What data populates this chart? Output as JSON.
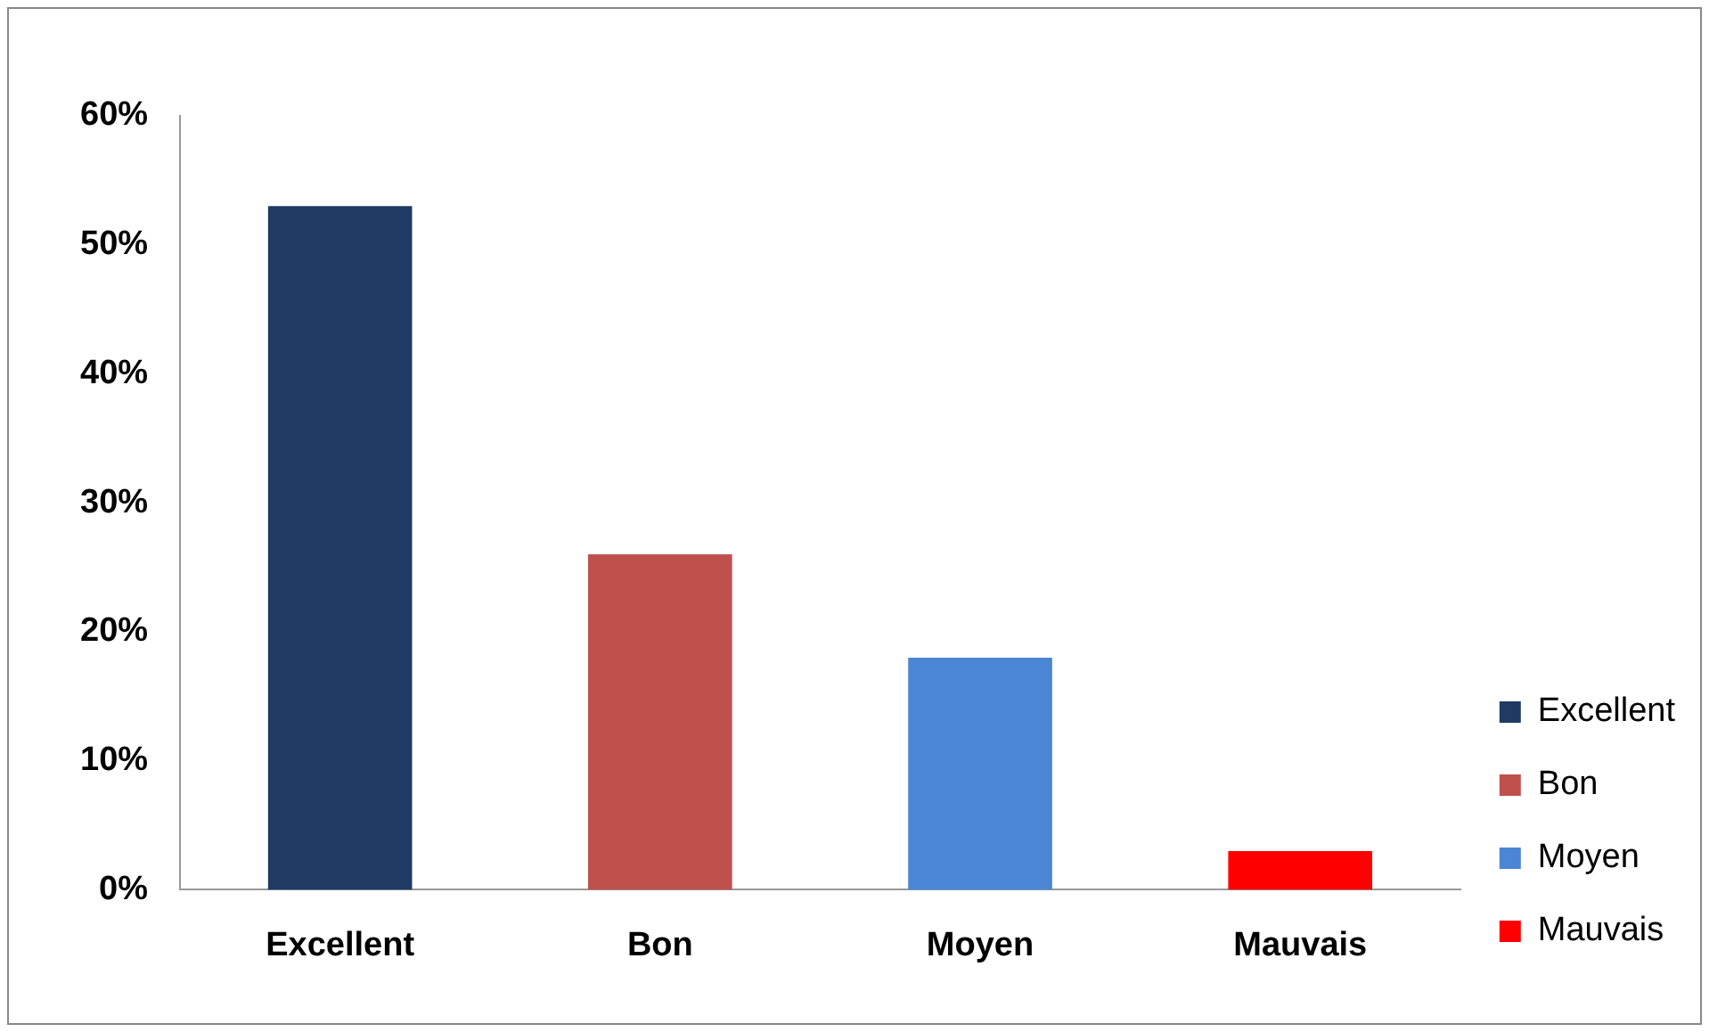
{
  "chart_data": {
    "type": "bar",
    "categories": [
      "Excellent",
      "Bon",
      "Moyen",
      "Mauvais"
    ],
    "series": [
      {
        "name": "Excellent",
        "color": "#1f3b63",
        "values": [
          53,
          null,
          null,
          null
        ]
      },
      {
        "name": "Bon",
        "color": "#c0504d",
        "values": [
          null,
          26,
          null,
          null
        ]
      },
      {
        "name": "Moyen",
        "color": "#4a86d4",
        "values": [
          null,
          null,
          18,
          null
        ]
      },
      {
        "name": "Mauvais",
        "color": "#ff0000",
        "values": [
          null,
          null,
          null,
          3
        ]
      }
    ],
    "ylim": [
      0,
      60
    ],
    "yticks": [
      {
        "value": 0,
        "label": "0%"
      },
      {
        "value": 10,
        "label": "10%"
      },
      {
        "value": 20,
        "label": "20%"
      },
      {
        "value": 30,
        "label": "30%"
      },
      {
        "value": 40,
        "label": "40%"
      },
      {
        "value": 50,
        "label": "50%"
      },
      {
        "value": 60,
        "label": "60%"
      }
    ],
    "grid": false,
    "legend": "right"
  }
}
